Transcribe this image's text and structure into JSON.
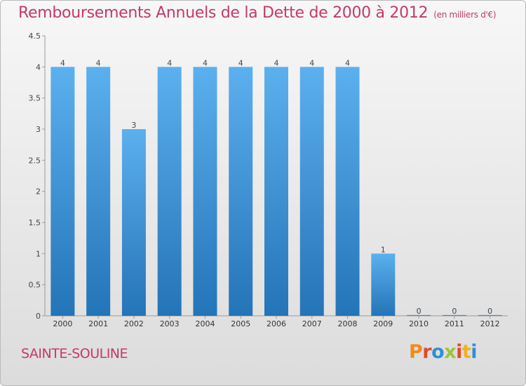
{
  "header": {
    "title": "Remboursements Annuels de la Dette de 2000 à 2012",
    "unit": "(en milliers d'€)"
  },
  "footer": {
    "commune": "SAINTE-SOULINE",
    "logo_text": "Proxiti",
    "logo_colors": [
      "#f08a1c",
      "#e04a2a",
      "#2f8fd6",
      "#9bc43a",
      "#e04a2a",
      "#f0b21c",
      "#2f8fd6"
    ]
  },
  "chart_data": {
    "type": "bar",
    "title": "Remboursements Annuels de la Dette de 2000 à 2012",
    "subtitle": "(en milliers d'€)",
    "xlabel": "",
    "ylabel": "",
    "categories": [
      "2000",
      "2001",
      "2002",
      "2003",
      "2004",
      "2005",
      "2006",
      "2007",
      "2008",
      "2009",
      "2010",
      "2011",
      "2012"
    ],
    "values": [
      4,
      4,
      3,
      4,
      4,
      4,
      4,
      4,
      4,
      1,
      0,
      0,
      0
    ],
    "data_labels": [
      "4",
      "4",
      "3",
      "4",
      "4",
      "4",
      "4",
      "4",
      "4",
      "1",
      "0",
      "0",
      "0"
    ],
    "y_ticks": [
      "0",
      "0.5",
      "1",
      "1.5",
      "2",
      "2.5",
      "3",
      "3.5",
      "4",
      "4.5"
    ],
    "ylim": [
      0,
      4.5
    ],
    "grid": false,
    "legend": "none",
    "bar_color": "#3d94d8"
  }
}
